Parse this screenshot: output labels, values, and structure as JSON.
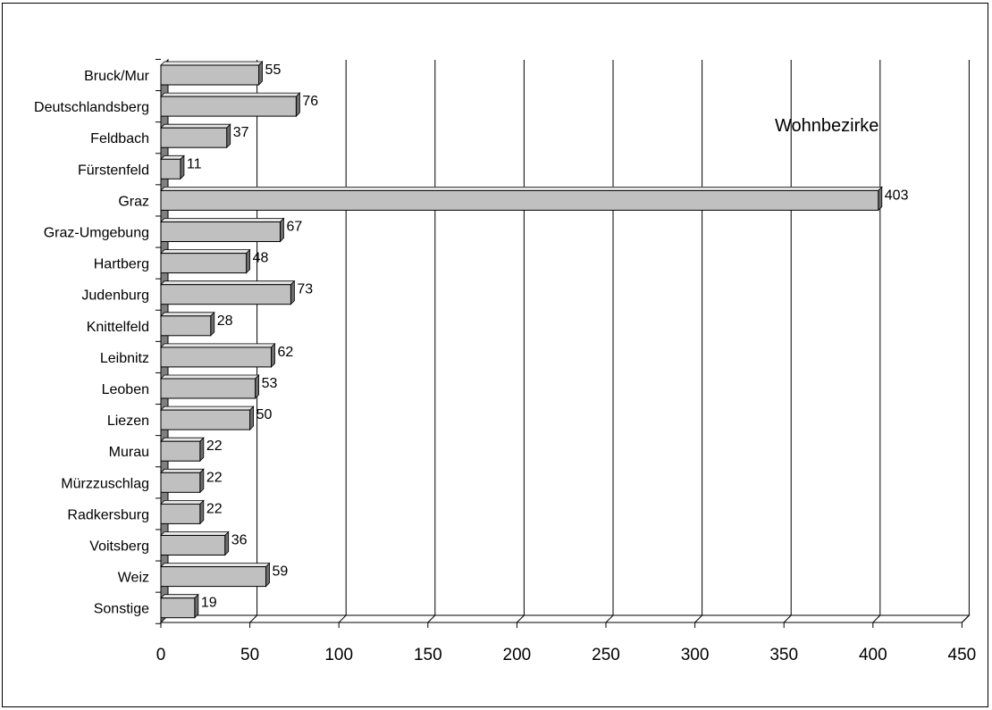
{
  "chart_data": {
    "type": "bar",
    "orientation": "horizontal",
    "three_d": true,
    "title": "Wohnbezirke",
    "xlabel": "",
    "ylabel": "",
    "categories": [
      "Bruck/Mur",
      "Deutschlandsberg",
      "Feldbach",
      "Fürstenfeld",
      "Graz",
      "Graz-Umgebung",
      "Hartberg",
      "Judenburg",
      "Knittelfeld",
      "Leibnitz",
      "Leoben",
      "Liezen",
      "Murau",
      "Mürzzuschlag",
      "Radkersburg",
      "Voitsberg",
      "Weiz",
      "Sonstige"
    ],
    "values": [
      55,
      76,
      37,
      11,
      403,
      67,
      48,
      73,
      28,
      62,
      53,
      50,
      22,
      22,
      22,
      36,
      59,
      19
    ],
    "xlim": [
      0,
      450
    ],
    "xticks": [
      0,
      50,
      100,
      150,
      200,
      250,
      300,
      350,
      400,
      450
    ],
    "grid": "vertical",
    "legend": "none",
    "data_labels": true,
    "colors": {
      "bar_front": "#c0c0c0",
      "bar_side": "#6e6e6e",
      "bar_top": "#e6e6e6",
      "wall": "#808080",
      "gridline": "#000000"
    }
  }
}
